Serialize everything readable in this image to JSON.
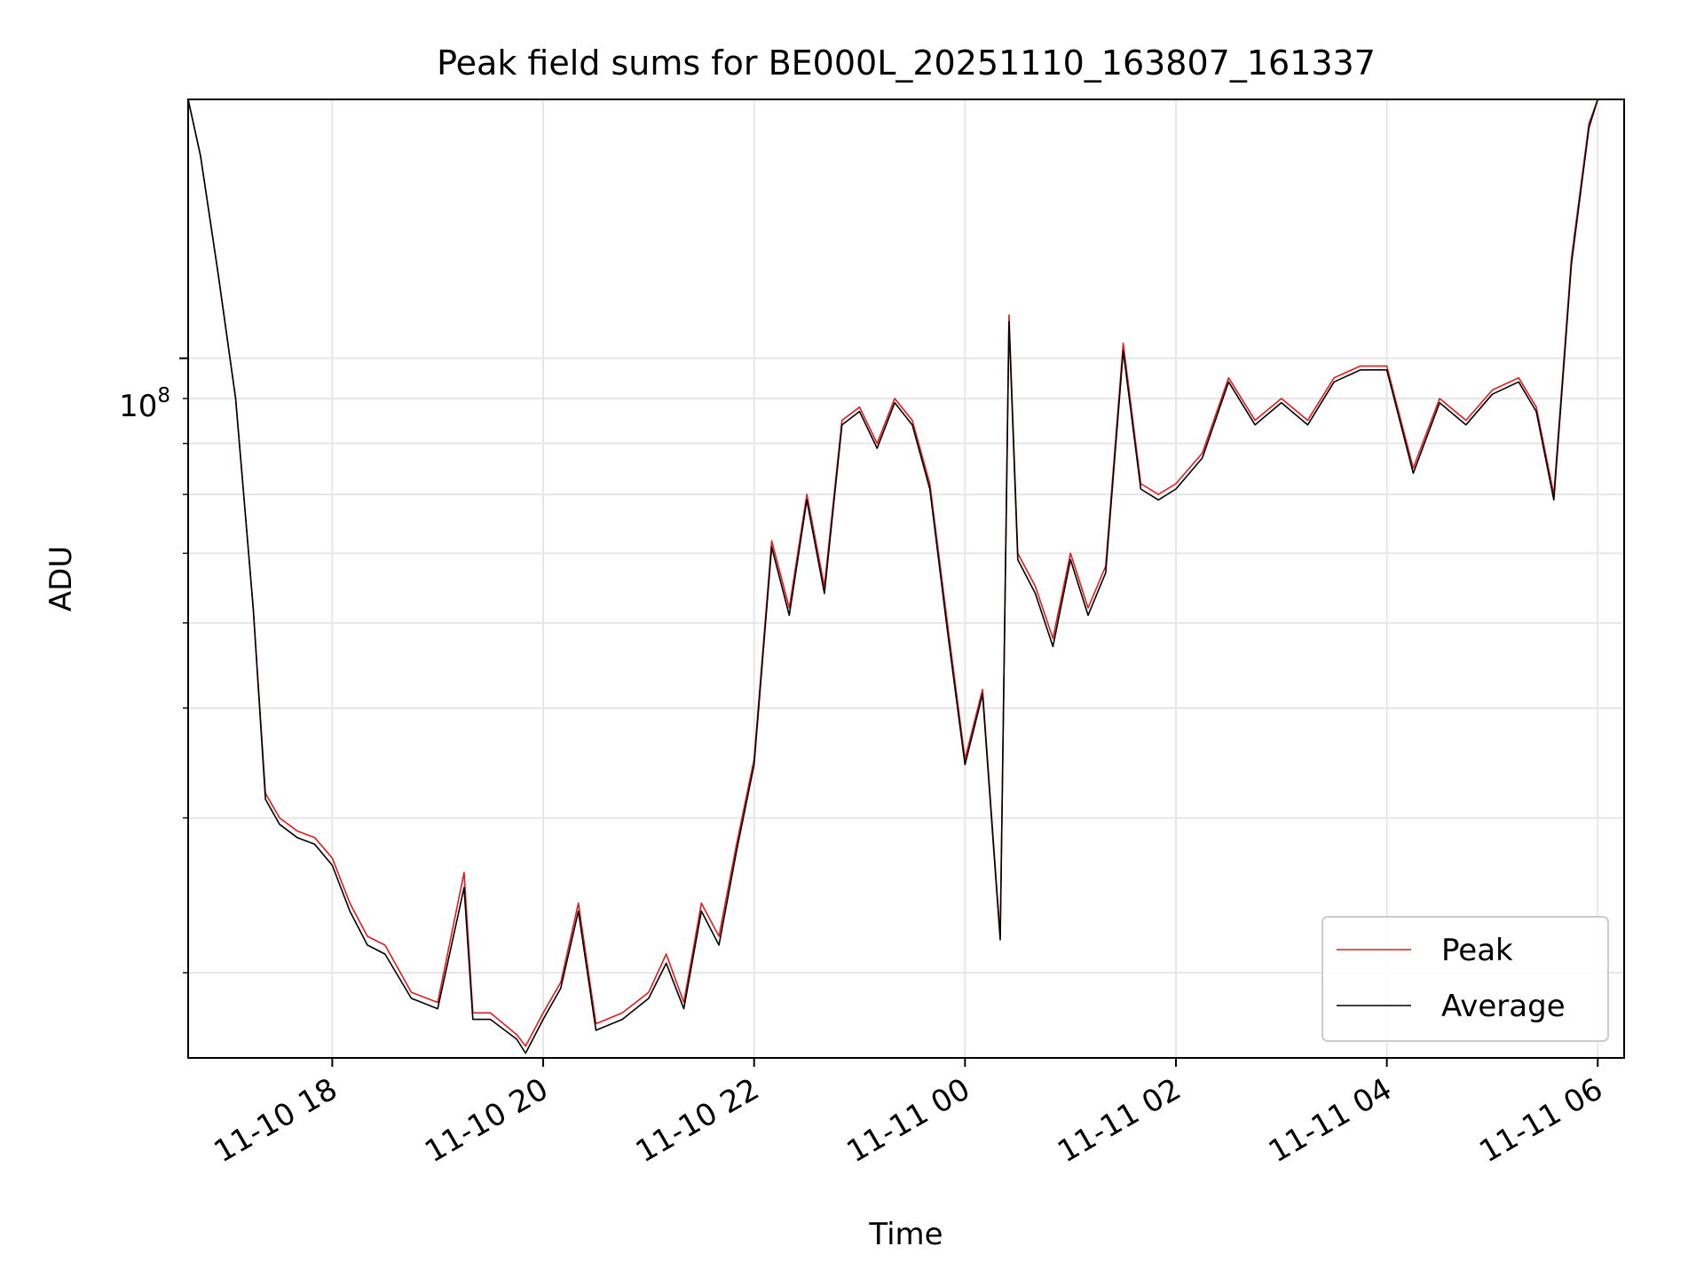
{
  "chart_data": {
    "type": "line",
    "title": "Peak field sums for BE000L_20251110_163807_161337",
    "xlabel": "Time",
    "ylabel": "ADU",
    "y_scale": "log",
    "grid": true,
    "legend_position": "lower right",
    "xlim": [
      "2025-11-10 16:38",
      "2025-11-11 06:15"
    ],
    "ylim": [
      16000000.0,
      197000000.0
    ],
    "x_ticks": [
      "11-10 18",
      "11-10 20",
      "11-10 22",
      "11-11 00",
      "11-11 02",
      "11-11 04",
      "11-11 06"
    ],
    "x_tick_times": [
      "2025-11-10 18:00",
      "2025-11-10 20:00",
      "2025-11-10 22:00",
      "2025-11-11 00:00",
      "2025-11-11 02:00",
      "2025-11-11 04:00",
      "2025-11-11 06:00"
    ],
    "y_tick_label_base": "10",
    "y_tick_label_exp": "8",
    "y_tick_value": 100000000,
    "x": [
      "2025-11-10 16:38",
      "2025-11-10 16:45",
      "2025-11-10 16:55",
      "2025-11-10 17:05",
      "2025-11-10 17:15",
      "2025-11-10 17:22",
      "2025-11-10 17:30",
      "2025-11-10 17:40",
      "2025-11-10 17:50",
      "2025-11-10 18:00",
      "2025-11-10 18:10",
      "2025-11-10 18:20",
      "2025-11-10 18:30",
      "2025-11-10 18:45",
      "2025-11-10 19:00",
      "2025-11-10 19:15",
      "2025-11-10 19:20",
      "2025-11-10 19:30",
      "2025-11-10 19:45",
      "2025-11-10 19:50",
      "2025-11-10 20:00",
      "2025-11-10 20:10",
      "2025-11-10 20:20",
      "2025-11-10 20:30",
      "2025-11-10 20:45",
      "2025-11-10 21:00",
      "2025-11-10 21:10",
      "2025-11-10 21:20",
      "2025-11-10 21:30",
      "2025-11-10 21:40",
      "2025-11-10 21:50",
      "2025-11-10 22:00",
      "2025-11-10 22:10",
      "2025-11-10 22:20",
      "2025-11-10 22:30",
      "2025-11-10 22:40",
      "2025-11-10 22:50",
      "2025-11-10 23:00",
      "2025-11-10 23:10",
      "2025-11-10 23:20",
      "2025-11-10 23:30",
      "2025-11-10 23:40",
      "2025-11-10 23:50",
      "2025-11-11 00:00",
      "2025-11-11 00:10",
      "2025-11-11 00:20",
      "2025-11-11 00:25",
      "2025-11-11 00:30",
      "2025-11-11 00:40",
      "2025-11-11 00:50",
      "2025-11-11 01:00",
      "2025-11-11 01:10",
      "2025-11-11 01:20",
      "2025-11-11 01:30",
      "2025-11-11 01:40",
      "2025-11-11 01:50",
      "2025-11-11 02:00",
      "2025-11-11 02:15",
      "2025-11-11 02:30",
      "2025-11-11 02:45",
      "2025-11-11 03:00",
      "2025-11-11 03:15",
      "2025-11-11 03:30",
      "2025-11-11 03:45",
      "2025-11-11 04:00",
      "2025-11-11 04:15",
      "2025-11-11 04:30",
      "2025-11-11 04:45",
      "2025-11-11 05:00",
      "2025-11-11 05:15",
      "2025-11-11 05:25",
      "2025-11-11 05:35",
      "2025-11-11 05:45",
      "2025-11-11 05:55",
      "2025-11-11 06:00"
    ],
    "series": [
      {
        "name": "Peak",
        "color": "#e41a1c",
        "values": [
          197000000,
          170000000,
          125000000,
          90000000,
          52000000,
          32000000,
          30000000,
          29000000,
          28500000,
          27000000,
          24000000,
          22000000,
          21500000,
          19000000,
          18500000,
          26000000,
          18000000,
          18000000,
          17000000,
          16500000,
          18000000,
          19500000,
          24000000,
          17500000,
          18000000,
          19000000,
          21000000,
          18500000,
          24000000,
          22000000,
          28000000,
          35000000,
          62000000,
          52000000,
          70000000,
          55000000,
          85000000,
          88000000,
          80000000,
          90000000,
          85000000,
          72000000,
          50000000,
          35000000,
          42000000,
          22000000,
          112000000,
          60000000,
          55000000,
          48000000,
          60000000,
          52000000,
          58000000,
          104000000,
          72000000,
          70000000,
          72000000,
          78000000,
          95000000,
          85000000,
          90000000,
          85000000,
          95000000,
          98000000,
          98000000,
          75000000,
          90000000,
          85000000,
          92000000,
          95000000,
          88000000,
          70000000,
          130000000,
          185000000,
          197000000
        ]
      },
      {
        "name": "Average",
        "color": "#000000",
        "values": [
          197000000,
          170000000,
          125000000,
          90000000,
          52000000,
          31500000,
          29500000,
          28500000,
          28000000,
          26500000,
          23500000,
          21500000,
          21000000,
          18700000,
          18200000,
          25000000,
          17700000,
          17700000,
          16800000,
          16200000,
          17700000,
          19200000,
          23500000,
          17200000,
          17700000,
          18700000,
          20500000,
          18200000,
          23500000,
          21500000,
          27500000,
          34500000,
          61000000,
          51000000,
          69000000,
          54000000,
          84000000,
          87000000,
          79000000,
          89000000,
          84000000,
          71000000,
          49000000,
          34500000,
          41500000,
          21800000,
          110000000,
          59000000,
          54000000,
          47000000,
          59000000,
          51000000,
          57000000,
          102000000,
          71000000,
          69000000,
          71000000,
          77000000,
          94000000,
          84000000,
          89000000,
          84000000,
          94000000,
          97000000,
          97000000,
          74000000,
          89000000,
          84000000,
          91000000,
          94000000,
          87000000,
          69000000,
          128000000,
          183000000,
          197000000
        ]
      }
    ]
  }
}
